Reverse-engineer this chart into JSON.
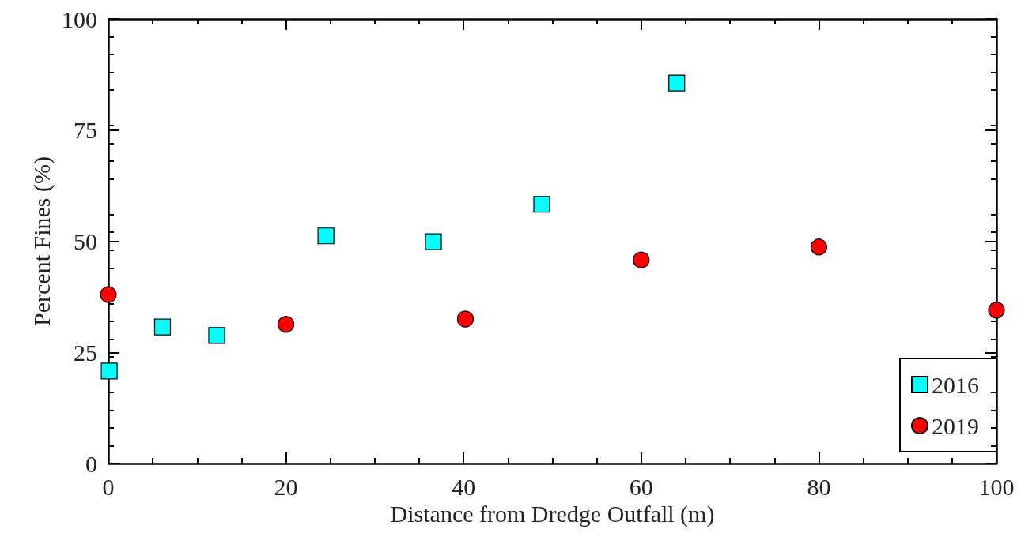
{
  "chart_data": {
    "type": "scatter",
    "xlabel": "Distance from Dredge Outfall (m)",
    "ylabel": "Percent Fines (%)",
    "xlim": [
      0,
      100
    ],
    "xticks": [
      0,
      20,
      40,
      60,
      80,
      100
    ],
    "ylim": [
      0,
      100
    ],
    "yticks": [
      0,
      25,
      50,
      75,
      100
    ],
    "grid": false,
    "legend": "bottom right",
    "series": [
      {
        "name": "2016",
        "color": "#00ffff",
        "marker": "square",
        "x": [
          0.1,
          6.1,
          12.2,
          24.5,
          36.6,
          48.8,
          64.0
        ],
        "values": [
          20.8,
          30.7,
          28.8,
          51.2,
          49.9,
          58.3,
          85.6
        ]
      },
      {
        "name": "2019",
        "color": "#ff0000",
        "marker": "circle",
        "x": [
          0,
          20,
          40.2,
          60,
          80,
          100
        ],
        "values": [
          38.0,
          31.3,
          32.5,
          45.8,
          48.7,
          34.5
        ]
      }
    ]
  }
}
